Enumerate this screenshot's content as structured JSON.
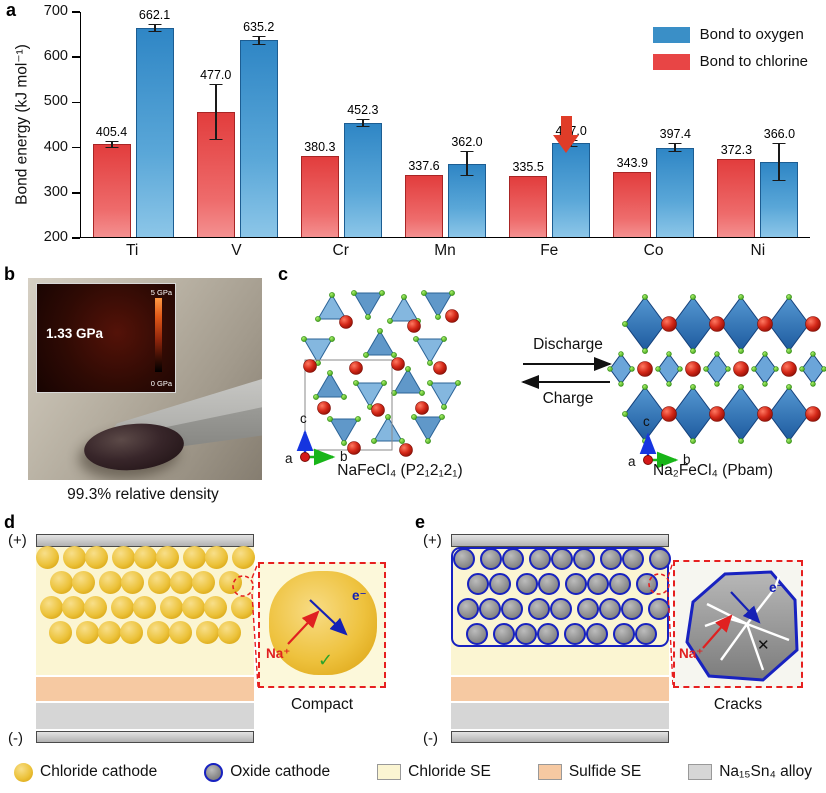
{
  "figure": {
    "panels": {
      "a": "a",
      "b": "b",
      "c": "c",
      "d": "d",
      "e": "e"
    }
  },
  "chart_data": {
    "type": "bar",
    "title": "",
    "xlabel": "",
    "ylabel": "Bond energy (kJ mol⁻¹)",
    "ylim": [
      200,
      700
    ],
    "yticks": [
      200,
      300,
      400,
      500,
      600,
      700
    ],
    "grid": false,
    "legend_position": "top-right",
    "categories": [
      "Ti",
      "V",
      "Cr",
      "Mn",
      "Fe",
      "Co",
      "Ni"
    ],
    "series": [
      {
        "name": "Bond to chlorine",
        "color": "#e84545",
        "values": [
          405.4,
          477.0,
          380.3,
          337.6,
          335.5,
          343.9,
          372.3
        ],
        "errors": [
          8,
          62,
          0,
          0,
          0,
          0,
          0
        ]
      },
      {
        "name": "Bond to oxygen",
        "color": "#3a8fc7",
        "values": [
          662.1,
          635.2,
          452.3,
          362.0,
          407.0,
          397.4,
          366.0
        ],
        "errors": [
          9,
          10,
          8,
          28,
          8,
          10,
          42
        ]
      }
    ],
    "legend": [
      {
        "label": "Bond to oxygen",
        "color": "#3a8fc7"
      },
      {
        "label": "Bond to chlorine",
        "color": "#e84545"
      }
    ],
    "annotation": {
      "type": "arrow-down",
      "category": "Fe",
      "color": "#e03c28"
    }
  },
  "panel_b": {
    "inset_value": "1.33 GPa",
    "scale_max": "5 GPa",
    "scale_min": "0 GPa",
    "caption": "99.3% relative density"
  },
  "panel_c": {
    "left_structure_label": "NaFeCl₄ (P2₁2₁2₁)",
    "right_structure_label": "Na₂FeCl₄ (Pbam)",
    "arrow_forward_label": "Discharge",
    "arrow_back_label": "Charge",
    "axis_up": "c",
    "axis_right": "b",
    "axis_origin": "a"
  },
  "panel_d": {
    "top_electrode": "(+)",
    "bottom_electrode": "(-)",
    "ion_label": "Na⁺",
    "electron_label": "e⁻",
    "result_mark": "✓",
    "inset_caption": "Compact"
  },
  "panel_e": {
    "top_electrode": "(+)",
    "bottom_electrode": "(-)",
    "ion_label": "Na⁺",
    "electron_label": "e⁻",
    "result_mark": "✕",
    "inset_caption": "Cracks"
  },
  "legend": {
    "items": [
      {
        "label": "Chloride cathode",
        "swatch": "chloride-cathode-circle"
      },
      {
        "label": "Oxide cathode",
        "swatch": "oxide-cathode-circle"
      },
      {
        "label": "Chloride SE",
        "swatch": "chloride-se-square"
      },
      {
        "label": "Sulfide SE",
        "swatch": "sulfide-se-square"
      },
      {
        "label": "Na₁₅Sn₄ alloy",
        "swatch": "alloy-square"
      }
    ],
    "colors": {
      "chloride_cathode": "#ecc23a",
      "oxide_cathode": "#8a8a8a",
      "oxide_border": "#1822c0",
      "chloride_se": "#fbf5d2",
      "sulfide_se": "#f6c9a2",
      "alloy": "#d6d6d6",
      "inset_border": "#e62020"
    }
  }
}
